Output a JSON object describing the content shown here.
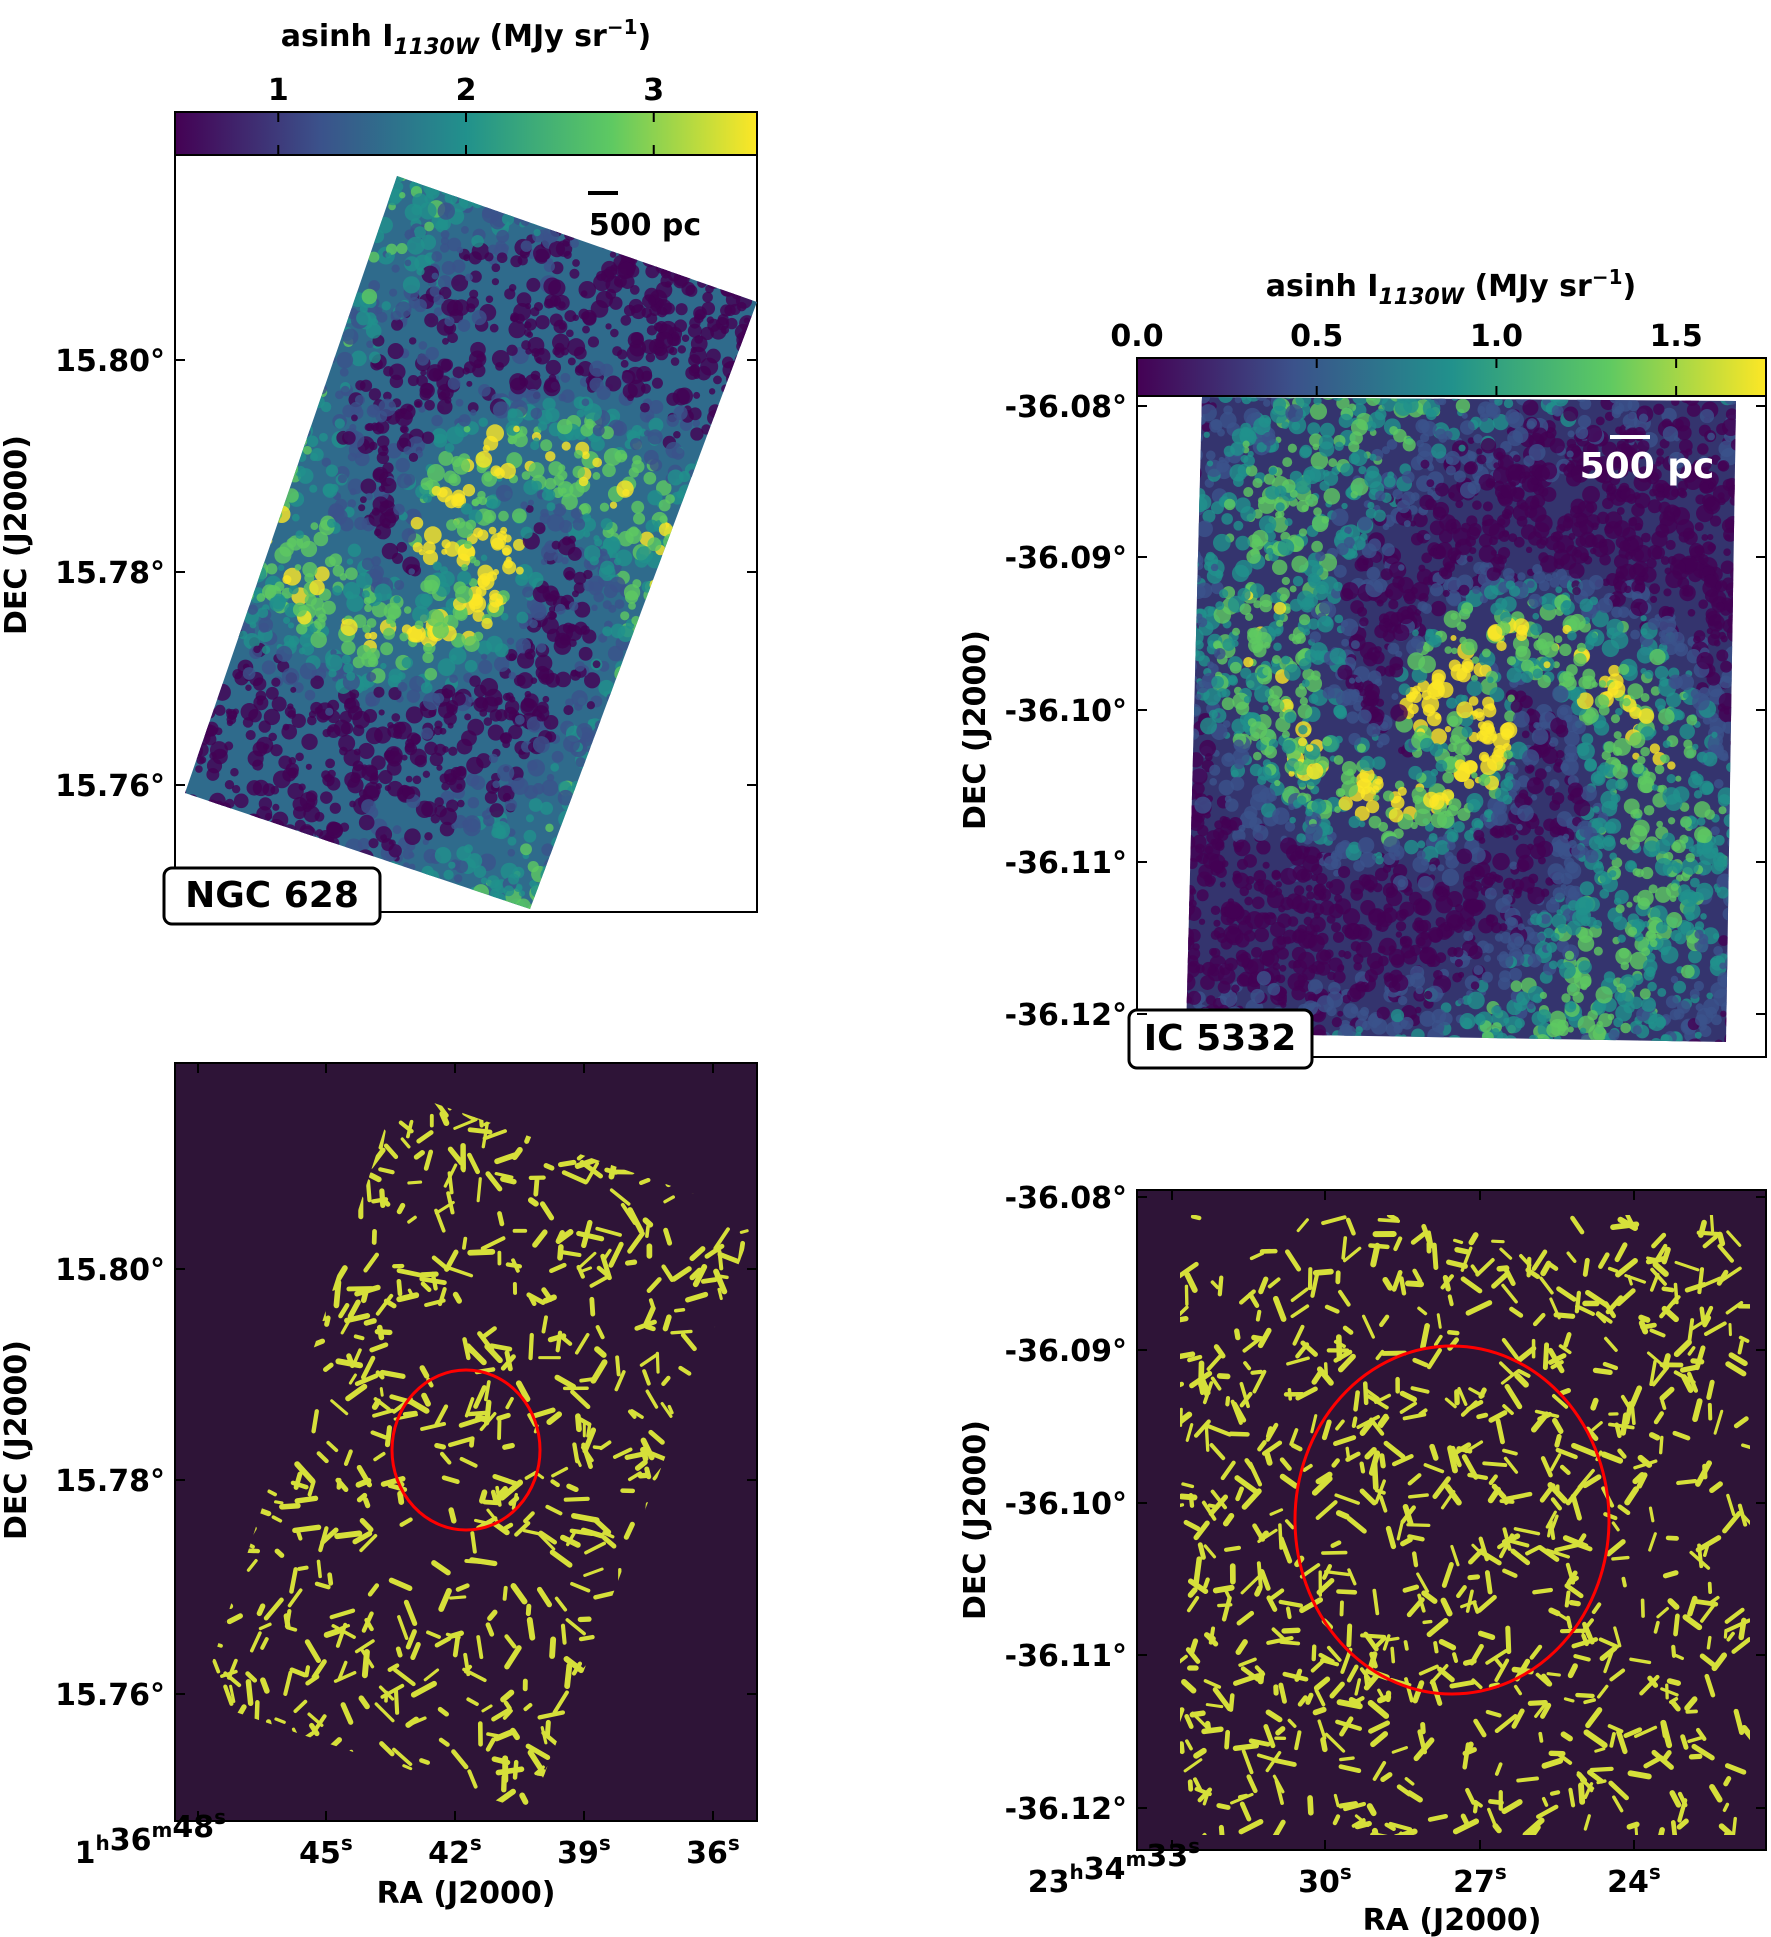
{
  "chart_data": [
    {
      "type": "heatmap",
      "panel": "top-left",
      "label": "NGC 628",
      "scale_bar": "500 pc",
      "colorbar": {
        "label_main": "asinh I",
        "label_sub": "1130W",
        "label_unit": "(MJy sr",
        "label_exp": "−1",
        "label_close": ")",
        "ticks": [
          "1",
          "2",
          "3"
        ],
        "tick_values": [
          1,
          2,
          3
        ],
        "range": [
          0.45,
          3.55
        ],
        "colormap": "viridis",
        "position": "top"
      },
      "ylabel": "DEC (J2000)",
      "yticks": [
        "15.80°",
        "15.78°",
        "15.76°"
      ]
    },
    {
      "type": "heatmap",
      "panel": "bottom-left",
      "ylabel": "DEC (J2000)",
      "xlabel": "RA (J2000)",
      "yticks": [
        "15.80°",
        "15.78°",
        "15.76°"
      ],
      "xticks": [
        "1h36m48s",
        "45s",
        "42s",
        "39s",
        "36s"
      ],
      "xticks_display": [
        {
          "main": "1",
          "sup": "h"
        },
        {
          "main": "36",
          "sup": "m"
        },
        {
          "main": "48",
          "sup": "s"
        }
      ],
      "xticks_rest": [
        [
          "45",
          "s"
        ],
        [
          "42",
          "s"
        ],
        [
          "39",
          "s"
        ],
        [
          "36",
          "s"
        ]
      ],
      "background_color": "#2e1437",
      "filament_color": "#d6e03a",
      "circle_color": "#ff0000"
    },
    {
      "type": "heatmap",
      "panel": "top-right",
      "label": "IC 5332",
      "scale_bar": "500 pc",
      "colorbar": {
        "label_main": "asinh I",
        "label_sub": "1130W",
        "label_unit": "(MJy sr",
        "label_exp": "−1",
        "label_close": ")",
        "ticks": [
          "0.0",
          "0.5",
          "1.0",
          "1.5"
        ],
        "tick_values": [
          0,
          0.5,
          1.0,
          1.5
        ],
        "range": [
          0,
          1.75
        ],
        "colormap": "viridis",
        "position": "top"
      },
      "ylabel": "DEC (J2000)",
      "yticks": [
        "-36.08°",
        "-36.09°",
        "-36.10°",
        "-36.11°",
        "-36.12°"
      ]
    },
    {
      "type": "heatmap",
      "panel": "bottom-right",
      "ylabel": "DEC (J2000)",
      "xlabel": "RA (J2000)",
      "yticks": [
        "-36.08°",
        "-36.09°",
        "-36.10°",
        "-36.11°",
        "-36.12°"
      ],
      "xticks": [
        "23h34m33s",
        "30s",
        "27s",
        "24s"
      ],
      "xticks_display": [
        {
          "main": "23",
          "sup": "h"
        },
        {
          "main": "34",
          "sup": "m"
        },
        {
          "main": "33",
          "sup": "s"
        }
      ],
      "xticks_rest": [
        [
          "30",
          "s"
        ],
        [
          "27",
          "s"
        ],
        [
          "24",
          "s"
        ]
      ],
      "background_color": "#2e1437",
      "filament_color": "#d6e03a",
      "circle_color": "#ff0000"
    }
  ]
}
